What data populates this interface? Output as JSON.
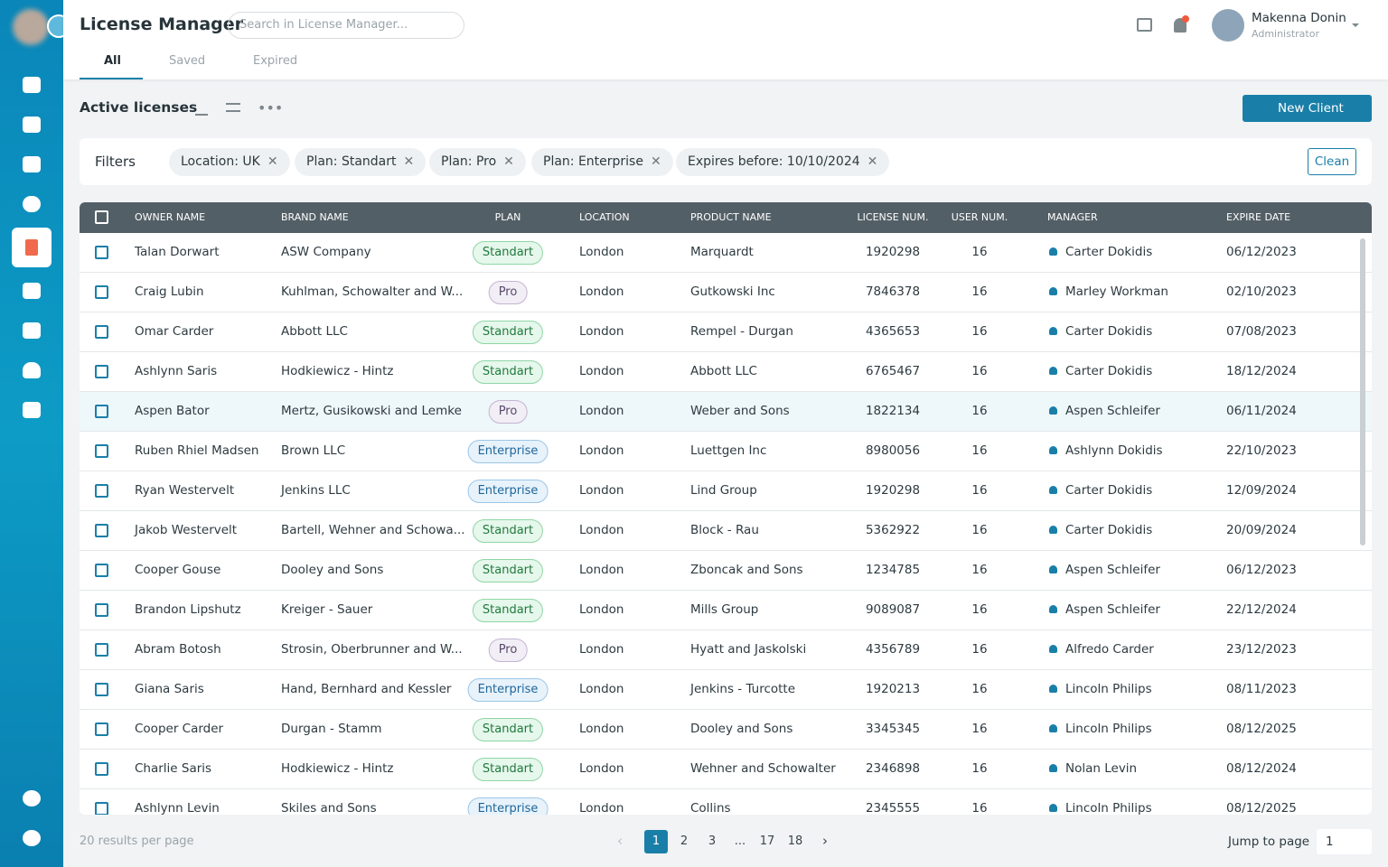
{
  "header": {
    "title": "License Manager",
    "search_placeholder": "Search in License Manager...",
    "user_name": "Makenna Donin",
    "user_role": "Administrator"
  },
  "tabs": [
    "All",
    "Saved",
    "Expired"
  ],
  "toolbar": {
    "title": "Active licenses",
    "new_button": "New Client"
  },
  "filters": {
    "label": "Filters",
    "chips": [
      "Location: UK",
      "Plan: Standart",
      "Plan: Pro",
      "Plan: Enterprise",
      "Expires before: 10/10/2024"
    ],
    "clean": "Clean"
  },
  "table": {
    "columns": [
      "OWNER NAME",
      "BRAND NAME",
      "PLAN",
      "LOCATION",
      "PRODUCT NAME",
      "LICENSE NUM.",
      "USER NUM.",
      "MANAGER",
      "EXPIRE DATE"
    ],
    "rows": [
      [
        "Talan Dorwart",
        "ASW Company",
        "Standart",
        "London",
        "Marquardt",
        "1920298",
        "16",
        "Carter Dokidis",
        "06/12/2023"
      ],
      [
        "Craig Lubin",
        "Kuhlman, Schowalter and W...",
        "Pro",
        "London",
        "Gutkowski Inc",
        "7846378",
        "16",
        "Marley Workman",
        "02/10/2023"
      ],
      [
        "Omar Carder",
        "Abbott LLC",
        "Standart",
        "London",
        "Rempel - Durgan",
        "4365653",
        "16",
        "Carter Dokidis",
        "07/08/2023"
      ],
      [
        "Ashlynn Saris",
        "Hodkiewicz - Hintz",
        "Standart",
        "London",
        "Abbott LLC",
        "6765467",
        "16",
        "Carter Dokidis",
        "18/12/2024"
      ],
      [
        "Aspen Bator",
        "Mertz, Gusikowski and Lemke",
        "Pro",
        "London",
        "Weber and Sons",
        "1822134",
        "16",
        "Aspen Schleifer",
        "06/11/2024"
      ],
      [
        "Ruben Rhiel Madsen",
        "Brown LLC",
        "Enterprise",
        "London",
        "Luettgen Inc",
        "8980056",
        "16",
        "Ashlynn Dokidis",
        "22/10/2023"
      ],
      [
        "Ryan Westervelt",
        "Jenkins LLC",
        "Enterprise",
        "London",
        "Lind Group",
        "1920298",
        "16",
        "Carter Dokidis",
        "12/09/2024"
      ],
      [
        "Jakob Westervelt",
        "Bartell, Wehner and Schowa...",
        "Standart",
        "London",
        "Block - Rau",
        "5362922",
        "16",
        "Carter Dokidis",
        "20/09/2024"
      ],
      [
        "Cooper Gouse",
        "Dooley and Sons",
        "Standart",
        "London",
        "Zboncak and Sons",
        "1234785",
        "16",
        "Aspen Schleifer",
        "06/12/2023"
      ],
      [
        "Brandon Lipshutz",
        "Kreiger - Sauer",
        "Standart",
        "London",
        "Mills Group",
        "9089087",
        "16",
        "Aspen Schleifer",
        "22/12/2024"
      ],
      [
        "Abram Botosh",
        "Strosin, Oberbrunner and W...",
        "Pro",
        "London",
        "Hyatt and Jaskolski",
        "4356789",
        "16",
        "Alfredo Carder",
        "23/12/2023"
      ],
      [
        "Giana Saris",
        "Hand, Bernhard and Kessler",
        "Enterprise",
        "London",
        "Jenkins - Turcotte",
        "1920213",
        "16",
        "Lincoln Philips",
        "08/11/2023"
      ],
      [
        "Cooper Carder",
        "Durgan - Stamm",
        "Standart",
        "London",
        "Dooley and Sons",
        "3345345",
        "16",
        "Lincoln Philips",
        "08/12/2025"
      ],
      [
        "Charlie Saris",
        "Hodkiewicz - Hintz",
        "Standart",
        "London",
        "Wehner and Schowalter",
        "2346898",
        "16",
        "Nolan Levin",
        "08/12/2024"
      ],
      [
        "Ashlynn Levin",
        "Skiles and Sons",
        "Enterprise",
        "London",
        "Collins",
        "2345555",
        "16",
        "Lincoln Philips",
        "08/12/2025"
      ]
    ]
  },
  "footer": {
    "per_page": "20 results per page",
    "pages": [
      "1",
      "2",
      "3",
      "...",
      "17",
      "18"
    ],
    "jump_label": "Jump to page",
    "jump_value": "1"
  }
}
